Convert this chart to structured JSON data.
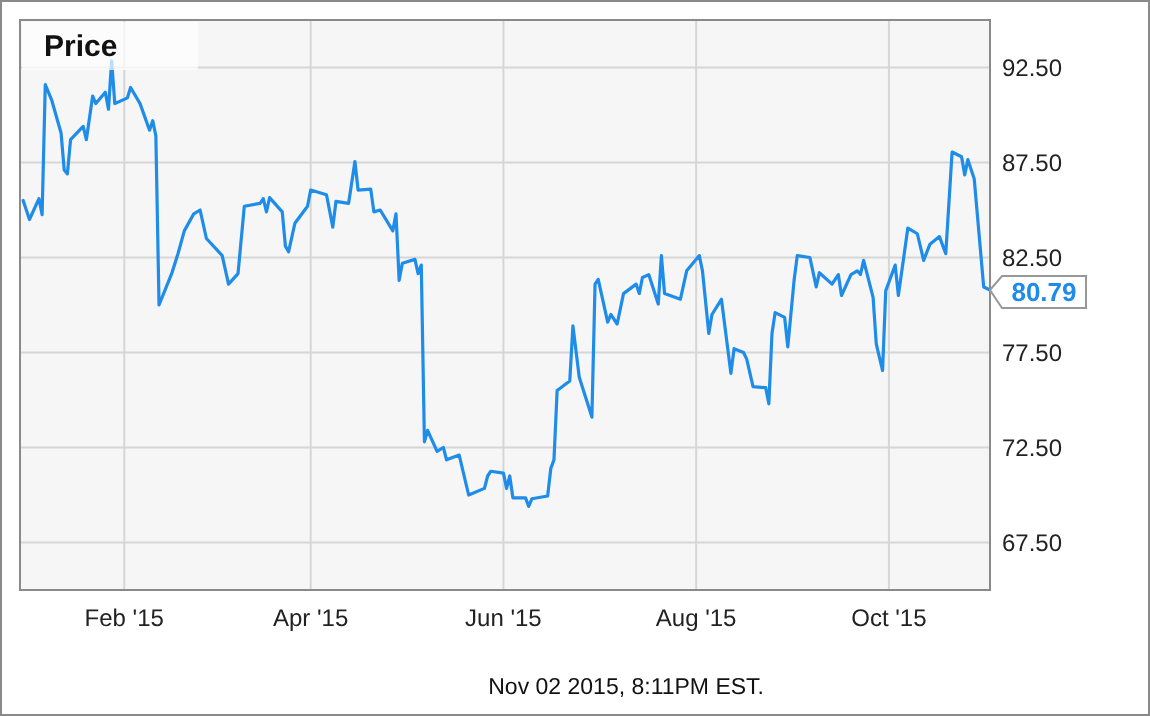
{
  "chart_data": {
    "type": "line",
    "title": "Price",
    "xlim": [
      "2014-12-30",
      "2015-11-02"
    ],
    "xticks": [
      {
        "value": "2015-02-01",
        "label": "Feb '15"
      },
      {
        "value": "2015-04-01",
        "label": "Apr '15"
      },
      {
        "value": "2015-06-01",
        "label": "Jun '15"
      },
      {
        "value": "2015-08-01",
        "label": "Aug '15"
      },
      {
        "value": "2015-10-01",
        "label": "Oct '15"
      }
    ],
    "ylim": [
      65,
      95
    ],
    "yticks": [
      {
        "value": 67.5,
        "label": "67.50"
      },
      {
        "value": 72.5,
        "label": "72.50"
      },
      {
        "value": 77.5,
        "label": "77.50"
      },
      {
        "value": 82.5,
        "label": "82.50"
      },
      {
        "value": 87.5,
        "label": "87.50"
      },
      {
        "value": 92.5,
        "label": "92.50"
      }
    ],
    "grid": true,
    "marker": "none",
    "line_style": "solid",
    "annotations": [
      {
        "text": "80.79",
        "x": "2015-11-02",
        "y": 80.79
      },
      "Nov 02 2015, 8:11PM EST."
    ],
    "x": [
      "2014-12-31",
      "2015-01-02",
      "2015-01-05",
      "2015-01-06",
      "2015-01-07",
      "2015-01-09",
      "2015-01-12",
      "2015-01-13",
      "2015-01-14",
      "2015-01-15",
      "2015-01-19",
      "2015-01-20",
      "2015-01-22",
      "2015-01-23",
      "2015-01-26",
      "2015-01-27",
      "2015-01-28",
      "2015-01-29",
      "2015-02-02",
      "2015-02-03",
      "2015-02-06",
      "2015-02-09",
      "2015-02-10",
      "2015-02-11",
      "2015-02-12",
      "2015-02-16",
      "2015-02-18",
      "2015-02-20",
      "2015-02-23",
      "2015-02-25",
      "2015-02-27",
      "2015-03-04",
      "2015-03-06",
      "2015-03-09",
      "2015-03-11",
      "2015-03-16",
      "2015-03-17",
      "2015-03-18",
      "2015-03-19",
      "2015-03-23",
      "2015-03-24",
      "2015-03-25",
      "2015-03-27",
      "2015-03-31",
      "2015-04-01",
      "2015-04-06",
      "2015-04-08",
      "2015-04-09",
      "2015-04-13",
      "2015-04-15",
      "2015-04-16",
      "2015-04-20",
      "2015-04-21",
      "2015-04-23",
      "2015-04-27",
      "2015-04-28",
      "2015-04-29",
      "2015-04-30",
      "2015-05-04",
      "2015-05-05",
      "2015-05-06",
      "2015-05-07",
      "2015-05-08",
      "2015-05-11",
      "2015-05-13",
      "2015-05-14",
      "2015-05-18",
      "2015-05-21",
      "2015-05-26",
      "2015-05-27",
      "2015-05-28",
      "2015-06-01",
      "2015-06-02",
      "2015-06-03",
      "2015-06-04",
      "2015-06-08",
      "2015-06-09",
      "2015-06-10",
      "2015-06-15",
      "2015-06-16",
      "2015-06-17",
      "2015-06-18",
      "2015-06-22",
      "2015-06-23",
      "2015-06-25",
      "2015-06-29",
      "2015-06-30",
      "2015-07-01",
      "2015-07-04",
      "2015-07-05",
      "2015-07-07",
      "2015-07-09",
      "2015-07-13",
      "2015-07-14",
      "2015-07-15",
      "2015-07-17",
      "2015-07-20",
      "2015-07-21",
      "2015-07-22",
      "2015-07-27",
      "2015-07-29",
      "2015-08-02",
      "2015-08-03",
      "2015-08-05",
      "2015-08-06",
      "2015-08-09",
      "2015-08-12",
      "2015-08-13",
      "2015-08-16",
      "2015-08-17",
      "2015-08-19",
      "2015-08-23",
      "2015-08-24",
      "2015-08-25",
      "2015-08-26",
      "2015-08-29",
      "2015-08-30",
      "2015-09-01",
      "2015-09-02",
      "2015-09-06",
      "2015-09-08",
      "2015-09-09",
      "2015-09-13",
      "2015-09-15",
      "2015-09-16",
      "2015-09-19",
      "2015-09-21",
      "2015-09-22",
      "2015-09-23",
      "2015-09-26",
      "2015-09-27",
      "2015-09-29",
      "2015-09-30",
      "2015-10-03",
      "2015-10-04",
      "2015-10-07",
      "2015-10-10",
      "2015-10-12",
      "2015-10-14",
      "2015-10-17",
      "2015-10-19",
      "2015-10-21",
      "2015-10-24",
      "2015-10-25",
      "2015-10-26",
      "2015-10-28",
      "2015-10-31",
      "2015-11-02"
    ],
    "series": [
      {
        "color": "#1e8ce8",
        "values": [
          85.5,
          84.5,
          85.6,
          84.75,
          91.6,
          90.8,
          89.05,
          87.1,
          86.9,
          88.7,
          89.4,
          88.7,
          91.0,
          90.6,
          91.2,
          90.3,
          92.85,
          90.6,
          90.9,
          91.45,
          90.6,
          89.2,
          89.7,
          88.9,
          80.0,
          81.65,
          82.7,
          83.9,
          84.8,
          85.0,
          83.5,
          82.6,
          81.1,
          81.65,
          85.2,
          85.35,
          85.6,
          84.9,
          85.65,
          84.9,
          83.1,
          82.8,
          84.3,
          85.2,
          86.05,
          85.8,
          84.1,
          85.45,
          85.35,
          87.55,
          86.05,
          86.1,
          84.9,
          85.0,
          83.9,
          84.8,
          81.3,
          82.2,
          82.4,
          81.65,
          82.1,
          72.8,
          73.4,
          72.3,
          72.5,
          71.85,
          72.1,
          70.0,
          70.35,
          71.0,
          71.25,
          71.15,
          70.35,
          71.0,
          69.85,
          69.85,
          69.4,
          69.8,
          69.95,
          71.4,
          71.85,
          75.5,
          76.0,
          78.9,
          76.2,
          74.1,
          81.1,
          81.35,
          79.1,
          79.5,
          79.0,
          80.6,
          81.1,
          80.6,
          81.45,
          81.6,
          80.05,
          82.6,
          80.6,
          80.3,
          81.8,
          82.6,
          81.8,
          78.5,
          79.5,
          80.3,
          76.4,
          77.7,
          77.5,
          77.15,
          75.7,
          75.65,
          74.8,
          78.5,
          79.6,
          79.35,
          77.8,
          81.3,
          82.6,
          82.5,
          80.95,
          81.7,
          81.1,
          81.6,
          80.5,
          81.6,
          81.8,
          81.6,
          82.35,
          80.4,
          77.95,
          76.55,
          80.75,
          82.1,
          80.5,
          84.05,
          83.75,
          82.35,
          83.2,
          83.6,
          82.7,
          88.05,
          87.8,
          86.85,
          87.65,
          86.65,
          80.95,
          80.79
        ]
      }
    ]
  }
}
